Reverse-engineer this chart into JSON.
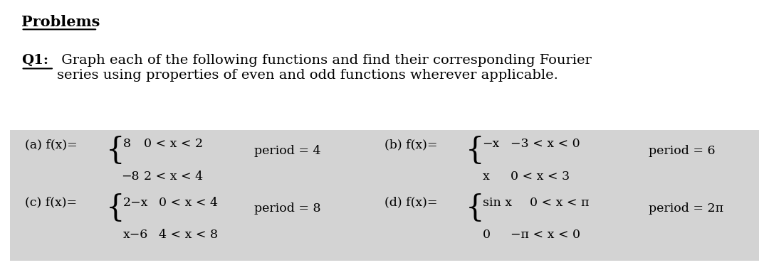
{
  "bg_color": "#ffffff",
  "box_color": "#d3d3d3",
  "title": "Problems",
  "q1_label": "Q1:",
  "q1_text": " Graph each of the following functions and find their corresponding Fourier\nseries using properties of even and odd functions wherever applicable.",
  "title_fontsize": 15,
  "body_fontsize": 14,
  "fs_func": 12.5,
  "fs_period": 12.5,
  "underline_problems": [
    [
      0.025,
      0.125
    ]
  ],
  "underline_q1": [
    [
      0.025,
      0.068
    ]
  ]
}
